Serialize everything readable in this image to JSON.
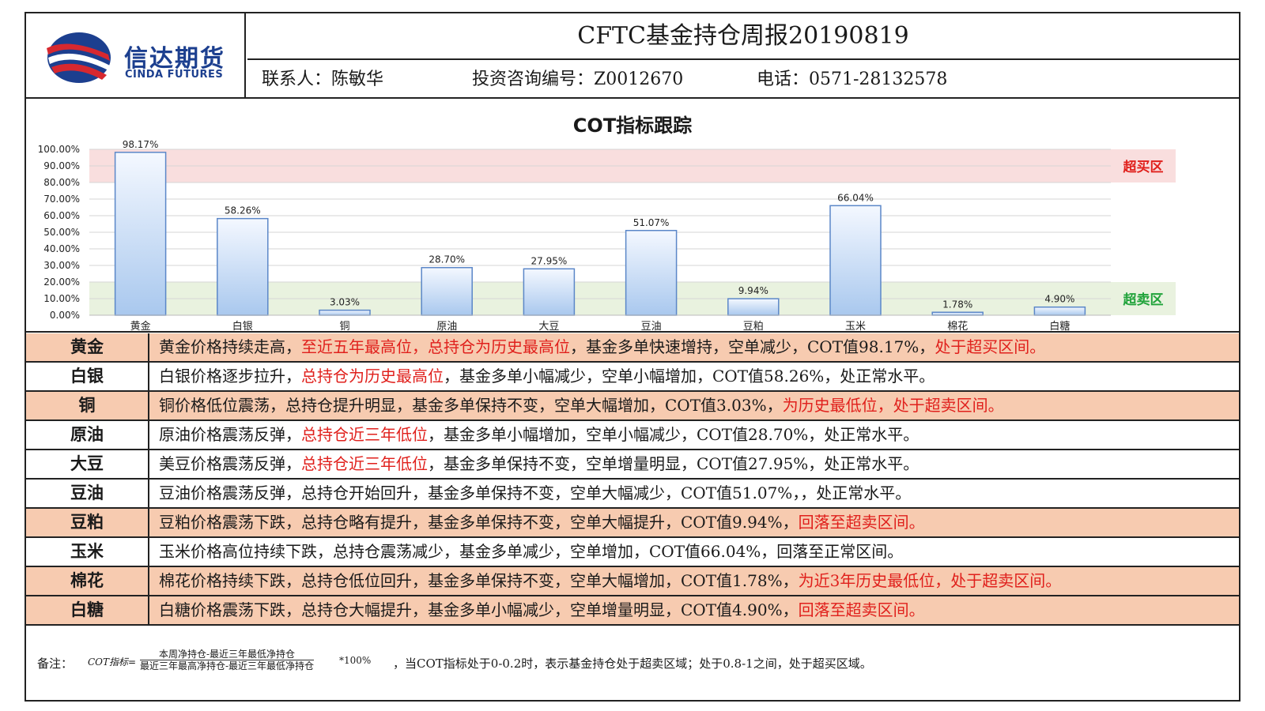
{
  "header": {
    "logo_cn": "信达期货",
    "logo_en": "CINDA FUTURES",
    "title": "CFTC基金持仓周报20190819",
    "contact": "联系人：陈敏华",
    "license": "投资咨询编号：Z0012670",
    "phone": "电话：0571-28132578"
  },
  "chart_data": {
    "type": "bar",
    "title": "COT指标跟踪",
    "categories": [
      "黄金",
      "白银",
      "铜",
      "原油",
      "大豆",
      "豆油",
      "豆粕",
      "玉米",
      "棉花",
      "白糖"
    ],
    "values": [
      98.17,
      58.26,
      3.03,
      28.7,
      27.95,
      51.07,
      9.94,
      66.04,
      1.78,
      4.9
    ],
    "data_labels": [
      "98.17%",
      "58.26%",
      "3.03%",
      "28.70%",
      "27.95%",
      "51.07%",
      "9.94%",
      "66.04%",
      "1.78%",
      "4.90%"
    ],
    "y_ticks": [
      "0.00%",
      "10.00%",
      "20.00%",
      "30.00%",
      "40.00%",
      "50.00%",
      "60.00%",
      "70.00%",
      "80.00%",
      "90.00%",
      "100.00%"
    ],
    "ylim": [
      0,
      100
    ],
    "grid": true,
    "zones": [
      {
        "label": "超买区",
        "from": 80,
        "to": 100,
        "color": "#f9dede",
        "text_color": "#e0201c"
      },
      {
        "label": "超卖区",
        "from": 0,
        "to": 20,
        "color": "#e9f2df",
        "text_color": "#21a33b"
      }
    ],
    "colors": {
      "bar_top": "#f4f8ff",
      "bar_bottom": "#a9c8ee",
      "bar_border": "#5b87c8"
    }
  },
  "table": {
    "rows": [
      {
        "name": "黄金",
        "highlight": true,
        "parts": [
          {
            "t": "黄金价格持续走高，",
            "red": false
          },
          {
            "t": "至近五年最高位，总持仓为历史最高位",
            "red": true
          },
          {
            "t": "，基金多单快速增持，空单减少，COT值98.17%，",
            "red": false
          },
          {
            "t": "处于超买区间。",
            "red": true
          }
        ]
      },
      {
        "name": "白银",
        "highlight": false,
        "parts": [
          {
            "t": "白银价格逐步拉升，",
            "red": false
          },
          {
            "t": "总持仓为历史最高位",
            "red": true
          },
          {
            "t": "，基金多单小幅减少，空单小幅增加，COT值58.26%，处正常水平。",
            "red": false
          }
        ]
      },
      {
        "name": "铜",
        "highlight": true,
        "parts": [
          {
            "t": "铜价格低位震荡，总持仓提升明显，基金多单保持不变，空单大幅增加，COT值3.03%，",
            "red": false
          },
          {
            "t": "为历史最低位，处于超卖区间。",
            "red": true
          }
        ]
      },
      {
        "name": "原油",
        "highlight": false,
        "parts": [
          {
            "t": "原油价格震荡反弹，",
            "red": false
          },
          {
            "t": "总持仓近三年低位",
            "red": true
          },
          {
            "t": "，基金多单小幅增加，空单小幅减少，COT值28.70%，处正常水平。",
            "red": false
          }
        ]
      },
      {
        "name": "大豆",
        "highlight": false,
        "parts": [
          {
            "t": "美豆价格震荡反弹，",
            "red": false
          },
          {
            "t": "总持仓近三年低位",
            "red": true
          },
          {
            "t": "，基金多单保持不变，空单增量明显，COT值27.95%，处正常水平。",
            "red": false
          }
        ]
      },
      {
        "name": "豆油",
        "highlight": false,
        "parts": [
          {
            "t": "豆油价格震荡反弹，总持仓开始回升，基金多单保持不变，空单大幅减少，COT值51.07%，，处正常水平。",
            "red": false
          }
        ]
      },
      {
        "name": "豆粕",
        "highlight": true,
        "parts": [
          {
            "t": "豆粕价格震荡下跌，总持仓略有提升，基金多单保持不变，空单大幅提升，COT值9.94%，",
            "red": false
          },
          {
            "t": "回落至超卖区间。",
            "red": true
          }
        ]
      },
      {
        "name": "玉米",
        "highlight": false,
        "parts": [
          {
            "t": "玉米价格高位持续下跌，总持仓震荡减少，基金多单减少，空单增加，COT值66.04%，回落至正常区间。",
            "red": false
          }
        ]
      },
      {
        "name": "棉花",
        "highlight": true,
        "parts": [
          {
            "t": "棉花价格持续下跌，总持仓低位回升，基金多单保持不变，空单大幅增加，COT值1.78%，",
            "red": false
          },
          {
            "t": "为近3年历史最低位，处于超卖区间。",
            "red": true
          }
        ]
      },
      {
        "name": "白糖",
        "highlight": true,
        "parts": [
          {
            "t": "白糖价格震荡下跌，总持仓大幅提升，基金多单小幅减少，空单增量明显，COT值4.90%，",
            "red": false
          },
          {
            "t": "回落至超卖区间。",
            "red": true
          }
        ]
      }
    ]
  },
  "footnote": {
    "label": "备注：",
    "name": "COT指标=",
    "numerator": "本周净持仓-最近三年最低净持仓",
    "denominator": "最近三年最高净持仓-最近三年最低净持仓",
    "multiplier": "*100%",
    "rest": "，当COT指标处于0-0.2时，表示基金持仓处于超卖区域；处于0.8-1之间，处于超买区域。"
  },
  "colors": {
    "brand_blue": "#1c3f8f",
    "logo_red": "#d7282f",
    "highlight_row": "#f7cbb0",
    "red_text": "#e0201c"
  }
}
